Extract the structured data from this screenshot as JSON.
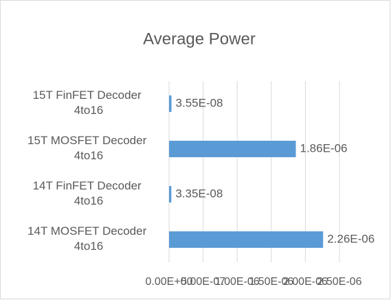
{
  "chart_data": {
    "type": "bar",
    "orientation": "horizontal",
    "title": "Average Power",
    "categories": [
      "15T FinFET Decoder 4to16",
      "15T MOSFET Decoder 4to16",
      "14T FinFET Decoder 4to16",
      "14T MOSFET Decoder 4to16"
    ],
    "values": [
      3.55e-08,
      1.86e-06,
      3.35e-08,
      2.26e-06
    ],
    "value_labels": [
      "3.55E-08",
      "1.86E-06",
      "3.35E-08",
      "2.26E-06"
    ],
    "color": "#5b9bd5",
    "xlim": [
      0,
      2.5e-06
    ],
    "xticks": [
      {
        "value": 0,
        "label": "0.00E+00"
      },
      {
        "value": 5e-07,
        "label": "5.00E-07"
      },
      {
        "value": 1e-06,
        "label": "1.00E-06"
      },
      {
        "value": 1.5e-06,
        "label": "1.50E-06"
      },
      {
        "value": 2e-06,
        "label": "2.00E-06"
      },
      {
        "value": 2.5e-06,
        "label": "2.50E-06"
      }
    ],
    "grid": true
  }
}
